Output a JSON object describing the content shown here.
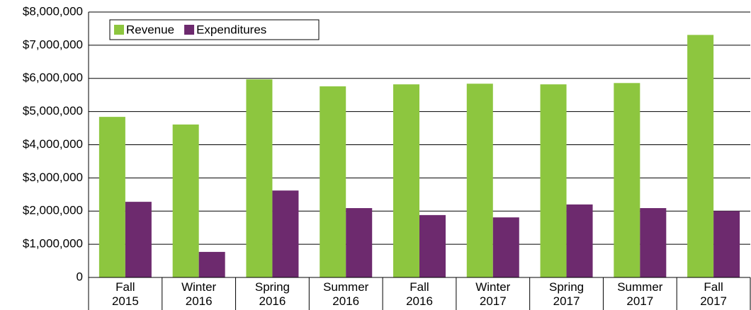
{
  "chart_data": {
    "type": "bar",
    "categories": [
      "Fall 2015",
      "Winter 2016",
      "Spring 2016",
      "Summer 2016",
      "Fall 2016",
      "Winter 2017",
      "Spring 2017",
      "Summer 2017",
      "Fall 2017"
    ],
    "series": [
      {
        "name": "Revenue",
        "color": "#8dc63f",
        "values": [
          4840000,
          4610000,
          5970000,
          5760000,
          5820000,
          5840000,
          5820000,
          5860000,
          7310000
        ]
      },
      {
        "name": "Expenditures",
        "color": "#6d2a6e",
        "values": [
          2280000,
          770000,
          2620000,
          2090000,
          1880000,
          1810000,
          2200000,
          2090000,
          2000000
        ]
      }
    ],
    "ylim": [
      0,
      8000000
    ],
    "yticks": [
      0,
      {
        "value": 1000000,
        "label": "$1,000,000"
      },
      {
        "value": 2000000,
        "label": "$2,000,000"
      },
      {
        "value": 3000000,
        "label": "$3,000,000"
      },
      {
        "value": 4000000,
        "label": "$4,000,000"
      },
      {
        "value": 5000000,
        "label": "$5,000,000"
      },
      {
        "value": 6000000,
        "label": "$6,000,000"
      },
      {
        "value": 7000000,
        "label": "$7,000,000"
      },
      {
        "value": 8000000,
        "label": "$8,000,000"
      }
    ],
    "grid": true,
    "legend": "top-left"
  }
}
